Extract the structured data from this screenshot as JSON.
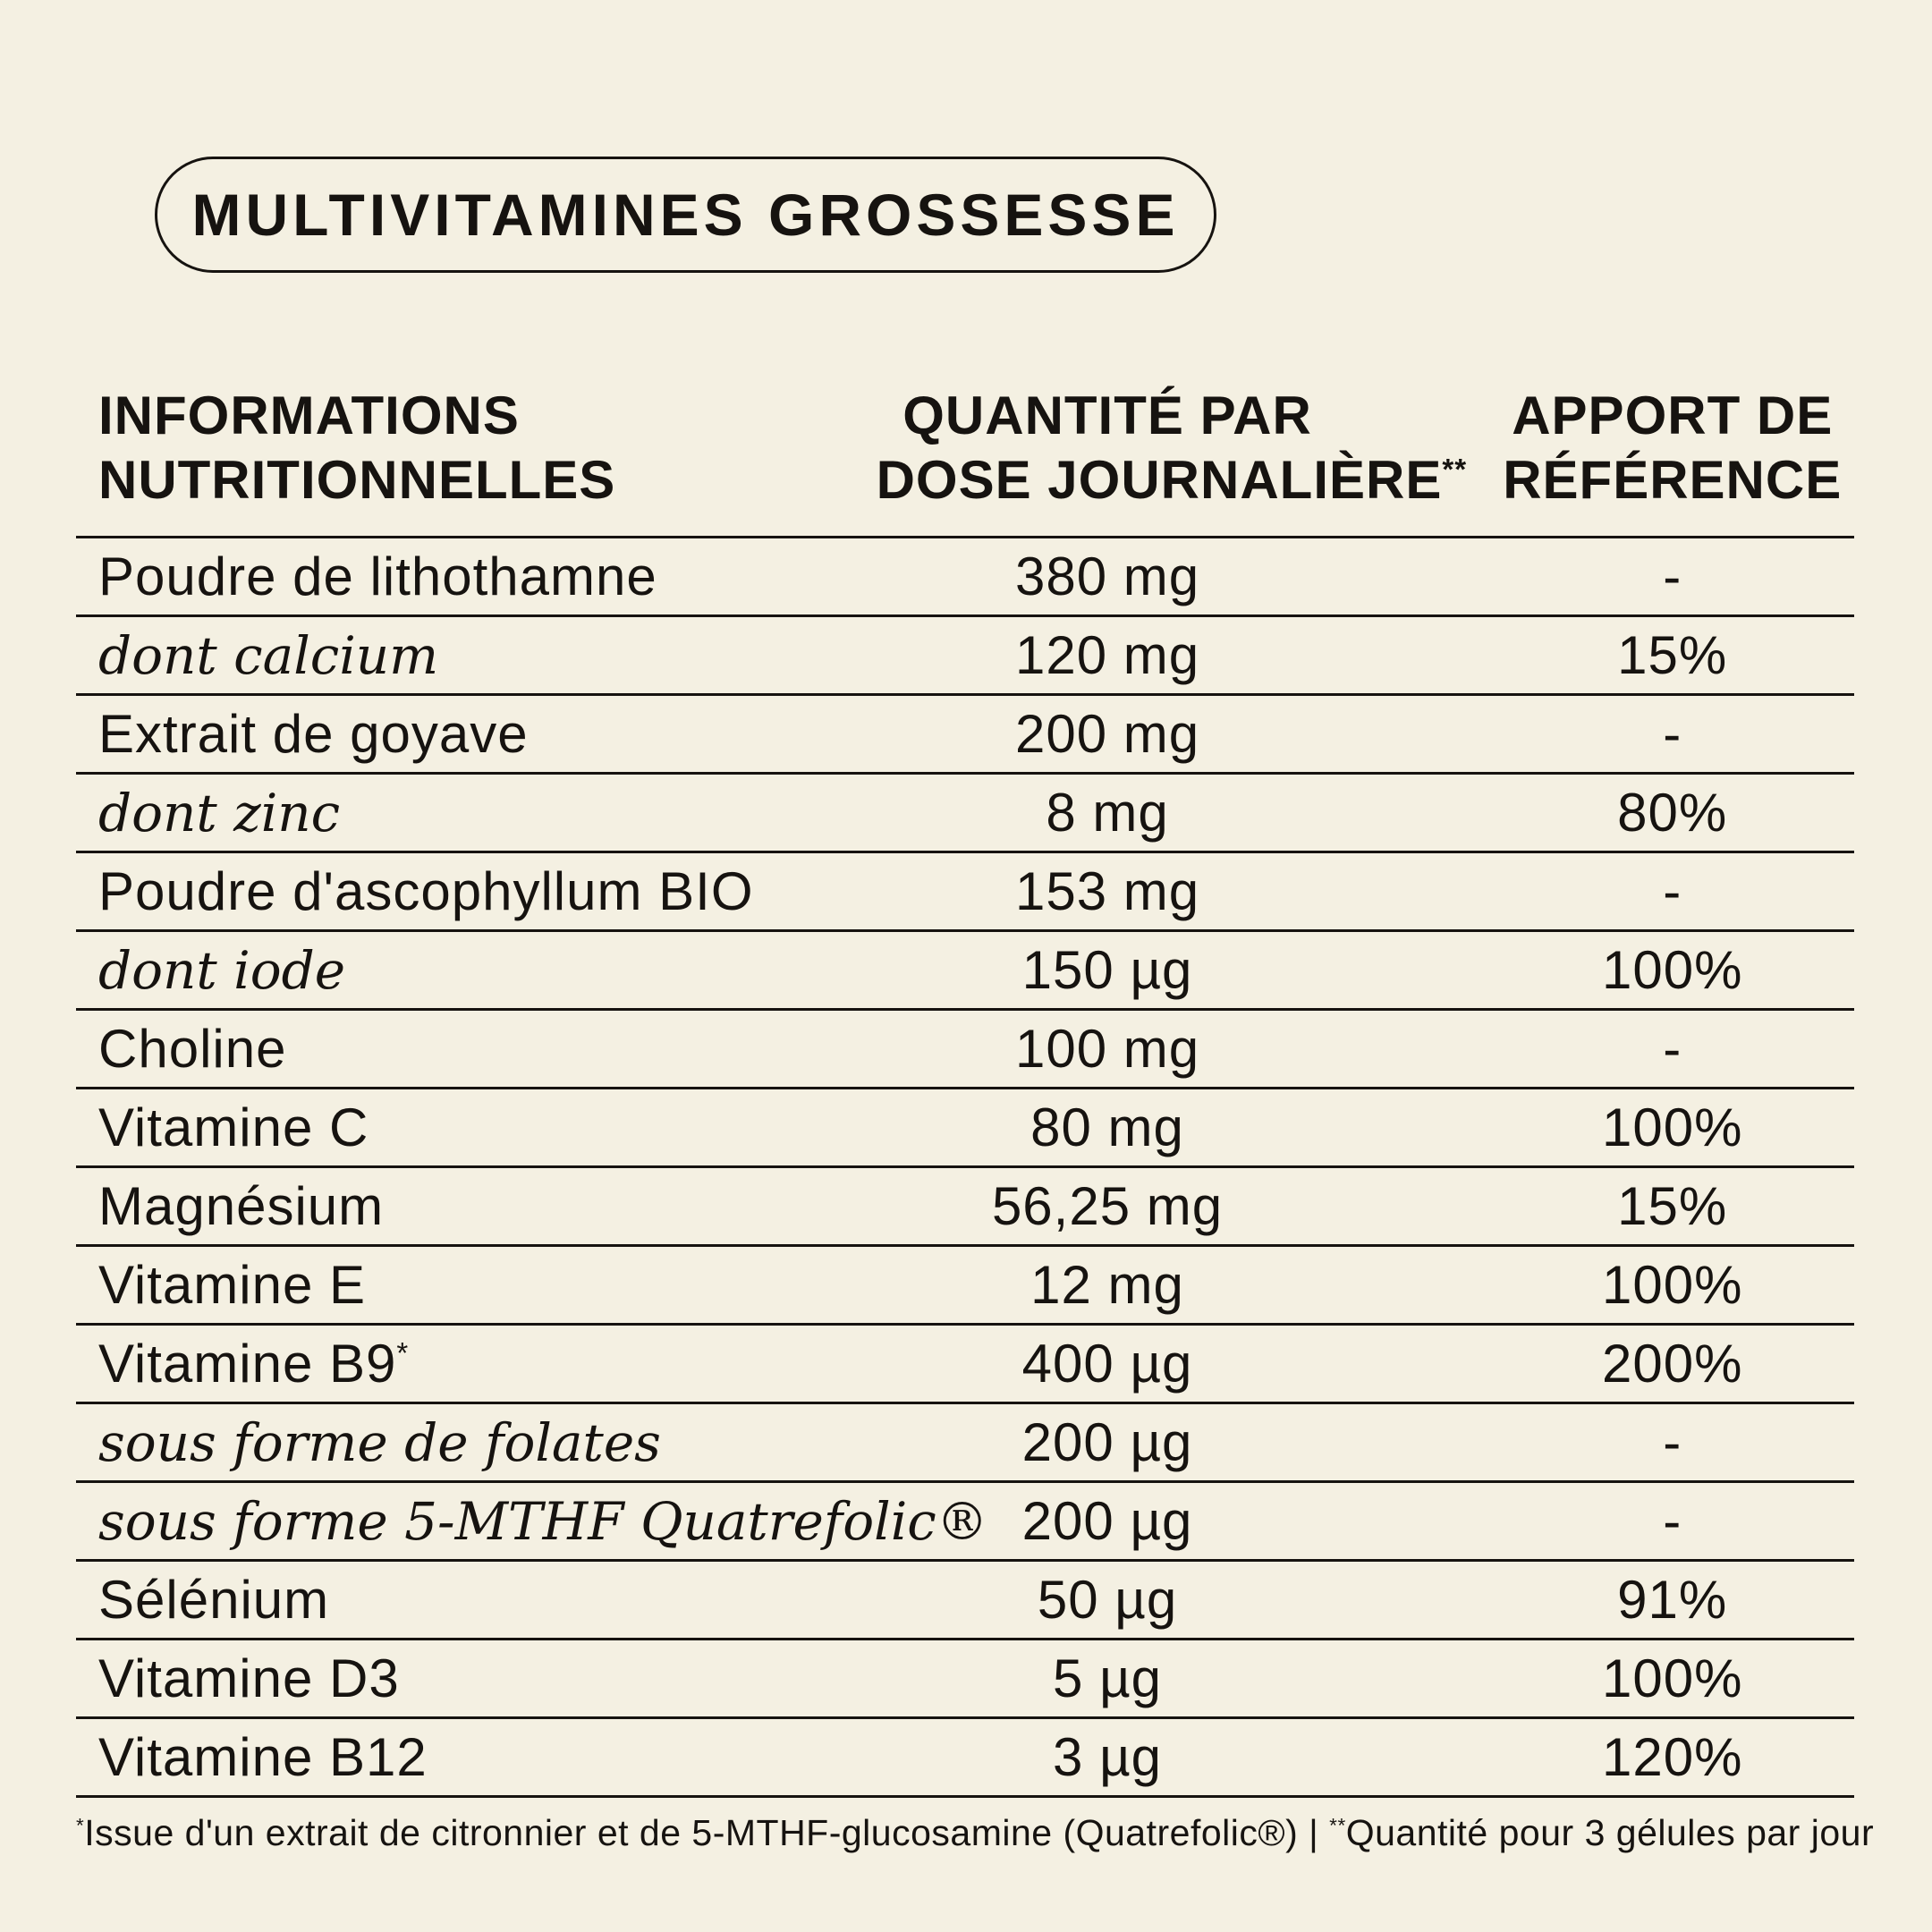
{
  "page": {
    "background_color": "#f4f0e2",
    "text_color": "#161310",
    "rule_color": "#161310"
  },
  "badge": {
    "label": "MULTIVITAMINES GROSSESSE"
  },
  "table": {
    "headers": {
      "col1": {
        "line1": "INFORMATIONS",
        "line2": "NUTRITIONNELLES"
      },
      "col2": {
        "line1": "QUANTITÉ PAR",
        "line2": "DOSE JOURNALIÈRE",
        "sup": "**"
      },
      "col3": {
        "line1": "APPORT DE",
        "line2": "RÉFÉRENCE"
      }
    },
    "rows": [
      {
        "name": "Poudre de lithothamne",
        "italic": false,
        "quantity": "380 mg",
        "reference": "-"
      },
      {
        "name": "dont calcium",
        "italic": true,
        "quantity": "120 mg",
        "reference": "15%"
      },
      {
        "name": "Extrait de goyave",
        "italic": false,
        "quantity": "200 mg",
        "reference": "-"
      },
      {
        "name": "dont zinc",
        "italic": true,
        "quantity": "8 mg",
        "reference": "80%"
      },
      {
        "name": "Poudre d'ascophyllum BIO",
        "italic": false,
        "quantity": "153 mg",
        "reference": "-"
      },
      {
        "name": "dont iode",
        "italic": true,
        "quantity": "150 µg",
        "reference": "100%"
      },
      {
        "name": "Choline",
        "italic": false,
        "quantity": "100 mg",
        "reference": "-"
      },
      {
        "name": "Vitamine C",
        "italic": false,
        "quantity": "80 mg",
        "reference": "100%"
      },
      {
        "name": "Magnésium",
        "italic": false,
        "quantity": "56,25 mg",
        "reference": "15%"
      },
      {
        "name": "Vitamine E",
        "italic": false,
        "quantity": "12 mg",
        "reference": "100%"
      },
      {
        "name": "Vitamine B9",
        "name_sup": "*",
        "italic": false,
        "quantity": "400 µg",
        "reference": "200%"
      },
      {
        "name": "sous forme de folates",
        "italic": true,
        "quantity": "200 µg",
        "reference": "-"
      },
      {
        "name": "sous forme 5-MTHF Quatrefolic®",
        "italic": true,
        "quantity": "200 µg",
        "reference": "-"
      },
      {
        "name": "Sélénium",
        "italic": false,
        "quantity": "50 µg",
        "reference": "91%"
      },
      {
        "name": "Vitamine D3",
        "italic": false,
        "quantity": "5 µg",
        "reference": "100%"
      },
      {
        "name": "Vitamine B12",
        "italic": false,
        "quantity": "3 µg",
        "reference": "120%"
      }
    ]
  },
  "footnote": {
    "sup1": "*",
    "part1": "Issue d'un extrait de citronnier et de 5-MTHF-glucosamine (Quatrefolic®) | ",
    "sup2": "**",
    "part2": "Quantité pour 3 gélules par jour"
  }
}
